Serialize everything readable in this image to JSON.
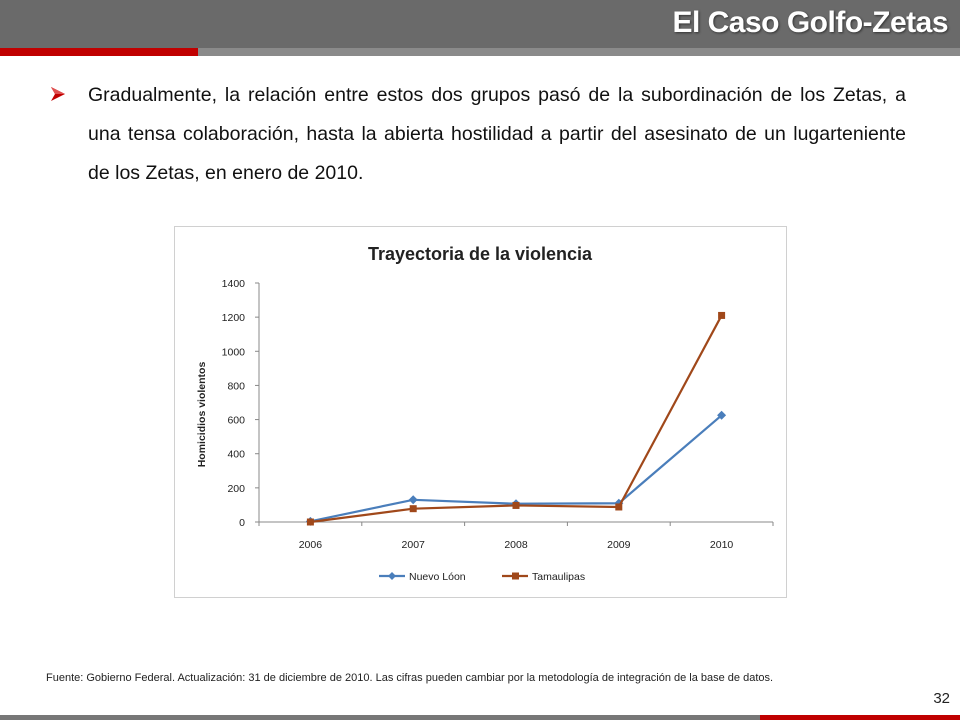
{
  "slide": {
    "title": "El Caso Golfo-Zetas",
    "bullet_text": "Gradualmente, la relación entre estos dos grupos pasó de la subordinación de los Zetas, a una tensa colaboración, hasta la abierta hostilidad a partir del asesinato de un lugarteniente de los Zetas, en enero de 2010.",
    "footer_note": "Fuente: Gobierno Federal. Actualización: 31 de diciembre de 2010. Las cifras pueden cambiar por la metodología de integración de la base de datos.",
    "page_number": "32"
  },
  "colors": {
    "header_bar": "#6a6a6a",
    "accent_red": "#c00000",
    "series_nuevo_leon": "#4a7ebb",
    "series_tamaulipas": "#a0481a"
  },
  "chart_data": {
    "type": "line",
    "title": "Trayectoria de la violencia",
    "xlabel": "",
    "ylabel": "Homicidios violentos",
    "categories": [
      "2006",
      "2007",
      "2008",
      "2009",
      "2010"
    ],
    "ylim": [
      0,
      1400
    ],
    "yticks": [
      "0",
      "200",
      "400",
      "600",
      "800",
      "1000",
      "1200",
      "1400"
    ],
    "grid": false,
    "legend_position": "bottom",
    "series": [
      {
        "name": "Nuevo Lóon",
        "values": [
          4,
          130,
          107,
          110,
          625
        ],
        "marker": "diamond"
      },
      {
        "name": "Tamaulipas",
        "values": [
          0,
          78,
          97,
          88,
          1210
        ],
        "marker": "square"
      }
    ]
  }
}
